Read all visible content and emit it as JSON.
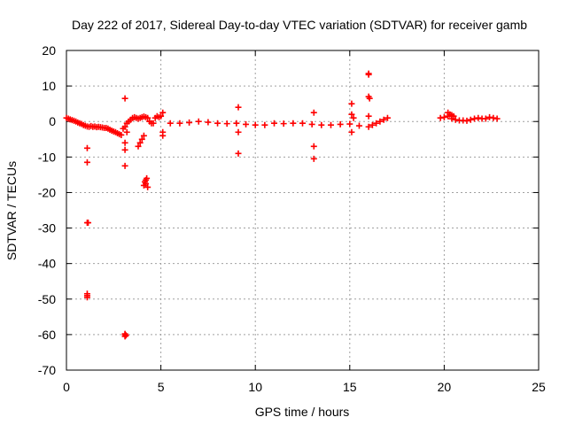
{
  "chart_data": {
    "type": "scatter",
    "title": "Day 222 of 2017, Sidereal Day-to-day VTEC variation (SDTVAR) for receiver gamb",
    "xlabel": "GPS time / hours",
    "ylabel": "SDTVAR / TECUs",
    "xlim": [
      0,
      25
    ],
    "ylim": [
      -70,
      20
    ],
    "xticks": [
      0,
      5,
      10,
      15,
      20,
      25
    ],
    "yticks": [
      20,
      10,
      0,
      -10,
      -20,
      -30,
      -40,
      -50,
      -60,
      -70
    ],
    "grid": true,
    "marker": "+",
    "series": [
      {
        "name": "SDTVAR",
        "color": "#ff0000",
        "x": [
          0.0,
          0.1,
          0.2,
          0.3,
          0.4,
          0.5,
          0.6,
          0.7,
          0.8,
          0.9,
          1.0,
          1.1,
          1.2,
          1.3,
          1.4,
          1.5,
          1.6,
          1.7,
          1.8,
          1.9,
          2.0,
          2.1,
          2.2,
          2.3,
          2.4,
          2.5,
          2.6,
          2.7,
          2.8,
          2.9,
          3.0,
          3.1,
          3.2,
          3.3,
          3.4,
          3.5,
          3.6,
          3.7,
          3.8,
          3.9,
          4.0,
          4.1,
          4.2,
          4.3,
          4.4,
          4.5,
          4.6,
          4.7,
          4.8,
          4.9,
          5.0,
          5.5,
          6.0,
          6.5,
          7.0,
          7.5,
          8.0,
          8.5,
          9.0,
          9.5,
          10.0,
          10.5,
          11.0,
          11.5,
          12.0,
          12.5,
          13.0,
          13.5,
          14.0,
          14.5,
          15.0,
          15.5,
          16.0,
          16.2,
          16.4,
          16.6,
          16.8,
          17.0,
          19.8,
          20.0,
          20.2,
          20.4,
          20.6,
          20.8,
          21.0,
          21.2,
          21.4,
          21.6,
          21.8,
          22.0,
          22.2,
          22.4,
          22.6,
          22.8,
          1.1,
          1.1,
          1.1,
          1.1,
          1.1,
          1.1,
          1.15,
          3.1,
          3.1,
          3.1,
          3.1,
          3.1,
          3.1,
          3.1,
          3.15,
          3.2,
          3.8,
          3.9,
          4.0,
          4.1,
          4.1,
          4.15,
          4.2,
          4.25,
          4.3,
          4.2,
          5.1,
          5.1,
          5.1,
          9.1,
          9.1,
          9.1,
          13.1,
          13.1,
          13.1,
          15.1,
          15.1,
          15.1,
          15.2,
          16.0,
          16.0,
          16.0,
          16.05,
          16.0,
          20.2,
          20.3,
          20.4,
          20.5
        ],
        "y": [
          1.0,
          0.8,
          0.6,
          0.4,
          0.2,
          0.0,
          -0.3,
          -0.5,
          -0.7,
          -1.0,
          -1.2,
          -1.4,
          -1.5,
          -1.3,
          -1.5,
          -1.4,
          -1.6,
          -1.5,
          -1.6,
          -1.7,
          -1.8,
          -1.8,
          -2.0,
          -2.3,
          -2.6,
          -2.8,
          -3.0,
          -3.3,
          -3.6,
          -3.8,
          -2.0,
          -1.5,
          -0.5,
          0.0,
          0.5,
          1.0,
          1.2,
          1.0,
          0.8,
          1.0,
          1.2,
          1.4,
          1.2,
          1.0,
          0.0,
          -0.5,
          -0.5,
          1.0,
          1.5,
          1.2,
          1.5,
          -0.5,
          -0.5,
          -0.3,
          0.0,
          -0.2,
          -0.5,
          -0.6,
          -0.5,
          -0.8,
          -1.0,
          -1.0,
          -0.5,
          -0.6,
          -0.5,
          -0.5,
          -0.8,
          -1.0,
          -1.0,
          -0.8,
          -0.7,
          -1.2,
          -1.5,
          -1.0,
          -0.5,
          0.0,
          0.5,
          1.0,
          1.0,
          1.2,
          1.5,
          0.8,
          0.5,
          0.3,
          0.3,
          0.2,
          0.5,
          0.8,
          1.0,
          0.8,
          0.8,
          1.2,
          1.0,
          0.8,
          -7.5,
          -11.5,
          -28.5,
          -49.0,
          -49.5,
          -48.5,
          -28.5,
          6.5,
          -6.0,
          -8.0,
          -12.5,
          -60.0,
          -60.5,
          -59.8,
          -60.2,
          -3.0,
          -7.0,
          -6.0,
          -5.0,
          -4.0,
          -18.0,
          -17.0,
          -16.5,
          -16.0,
          -18.5,
          -17.5,
          2.5,
          -3.0,
          -4.0,
          4.0,
          -3.0,
          -9.0,
          2.5,
          -7.0,
          -10.5,
          5.0,
          2.0,
          -3.0,
          1.0,
          13.5,
          13.2,
          7.0,
          6.5,
          1.5,
          2.5,
          2.0,
          1.8,
          1.5
        ]
      }
    ]
  }
}
